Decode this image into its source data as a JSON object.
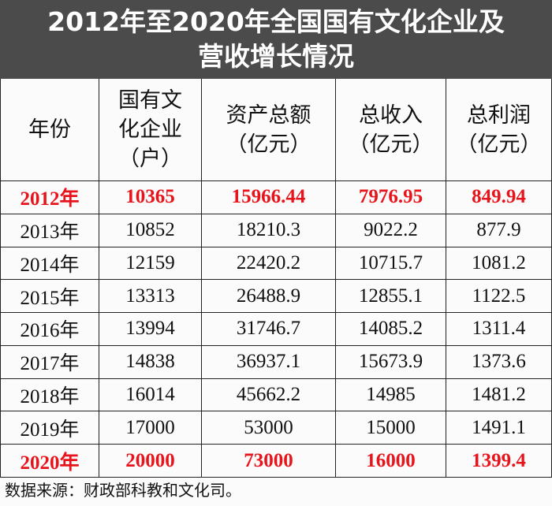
{
  "title": [
    "2012年至2020年全国国有文化企业及",
    "营收增长情况"
  ],
  "table": {
    "header": [
      [
        "年份"
      ],
      [
        "国有文",
        "化企业",
        "（户）"
      ],
      [
        "资产总额",
        "（亿元）"
      ],
      [
        "总收入",
        "（亿元）"
      ],
      [
        "总利润",
        "（亿元）"
      ]
    ],
    "rows": [
      [
        "2012年",
        "10365",
        "15966.44",
        "7976.95",
        "849.94"
      ],
      [
        "2013年",
        "10852",
        "18210.3",
        "9022.2",
        "877.9"
      ],
      [
        "2014年",
        "12159",
        "22420.2",
        "10715.7",
        "1081.2"
      ],
      [
        "2015年",
        "13313",
        "26488.9",
        "12855.1",
        "1122.5"
      ],
      [
        "2016年",
        "13994",
        "31746.7",
        "14085.2",
        "1311.4"
      ],
      [
        "2017年",
        "14838",
        "36937.1",
        "15673.9",
        "1373.6"
      ],
      [
        "2018年",
        "16014",
        "45662.2",
        "14985",
        "1481.2"
      ],
      [
        "2019年",
        "17000",
        "53000",
        "15000",
        "1491.1"
      ],
      [
        "2020年",
        "20000",
        "73000",
        "16000",
        "1399.4"
      ]
    ],
    "highlight_rows": [
      0,
      8
    ],
    "highlight_color": "#e8141c"
  },
  "source": "数据来源：财政部科教和文化司。"
}
